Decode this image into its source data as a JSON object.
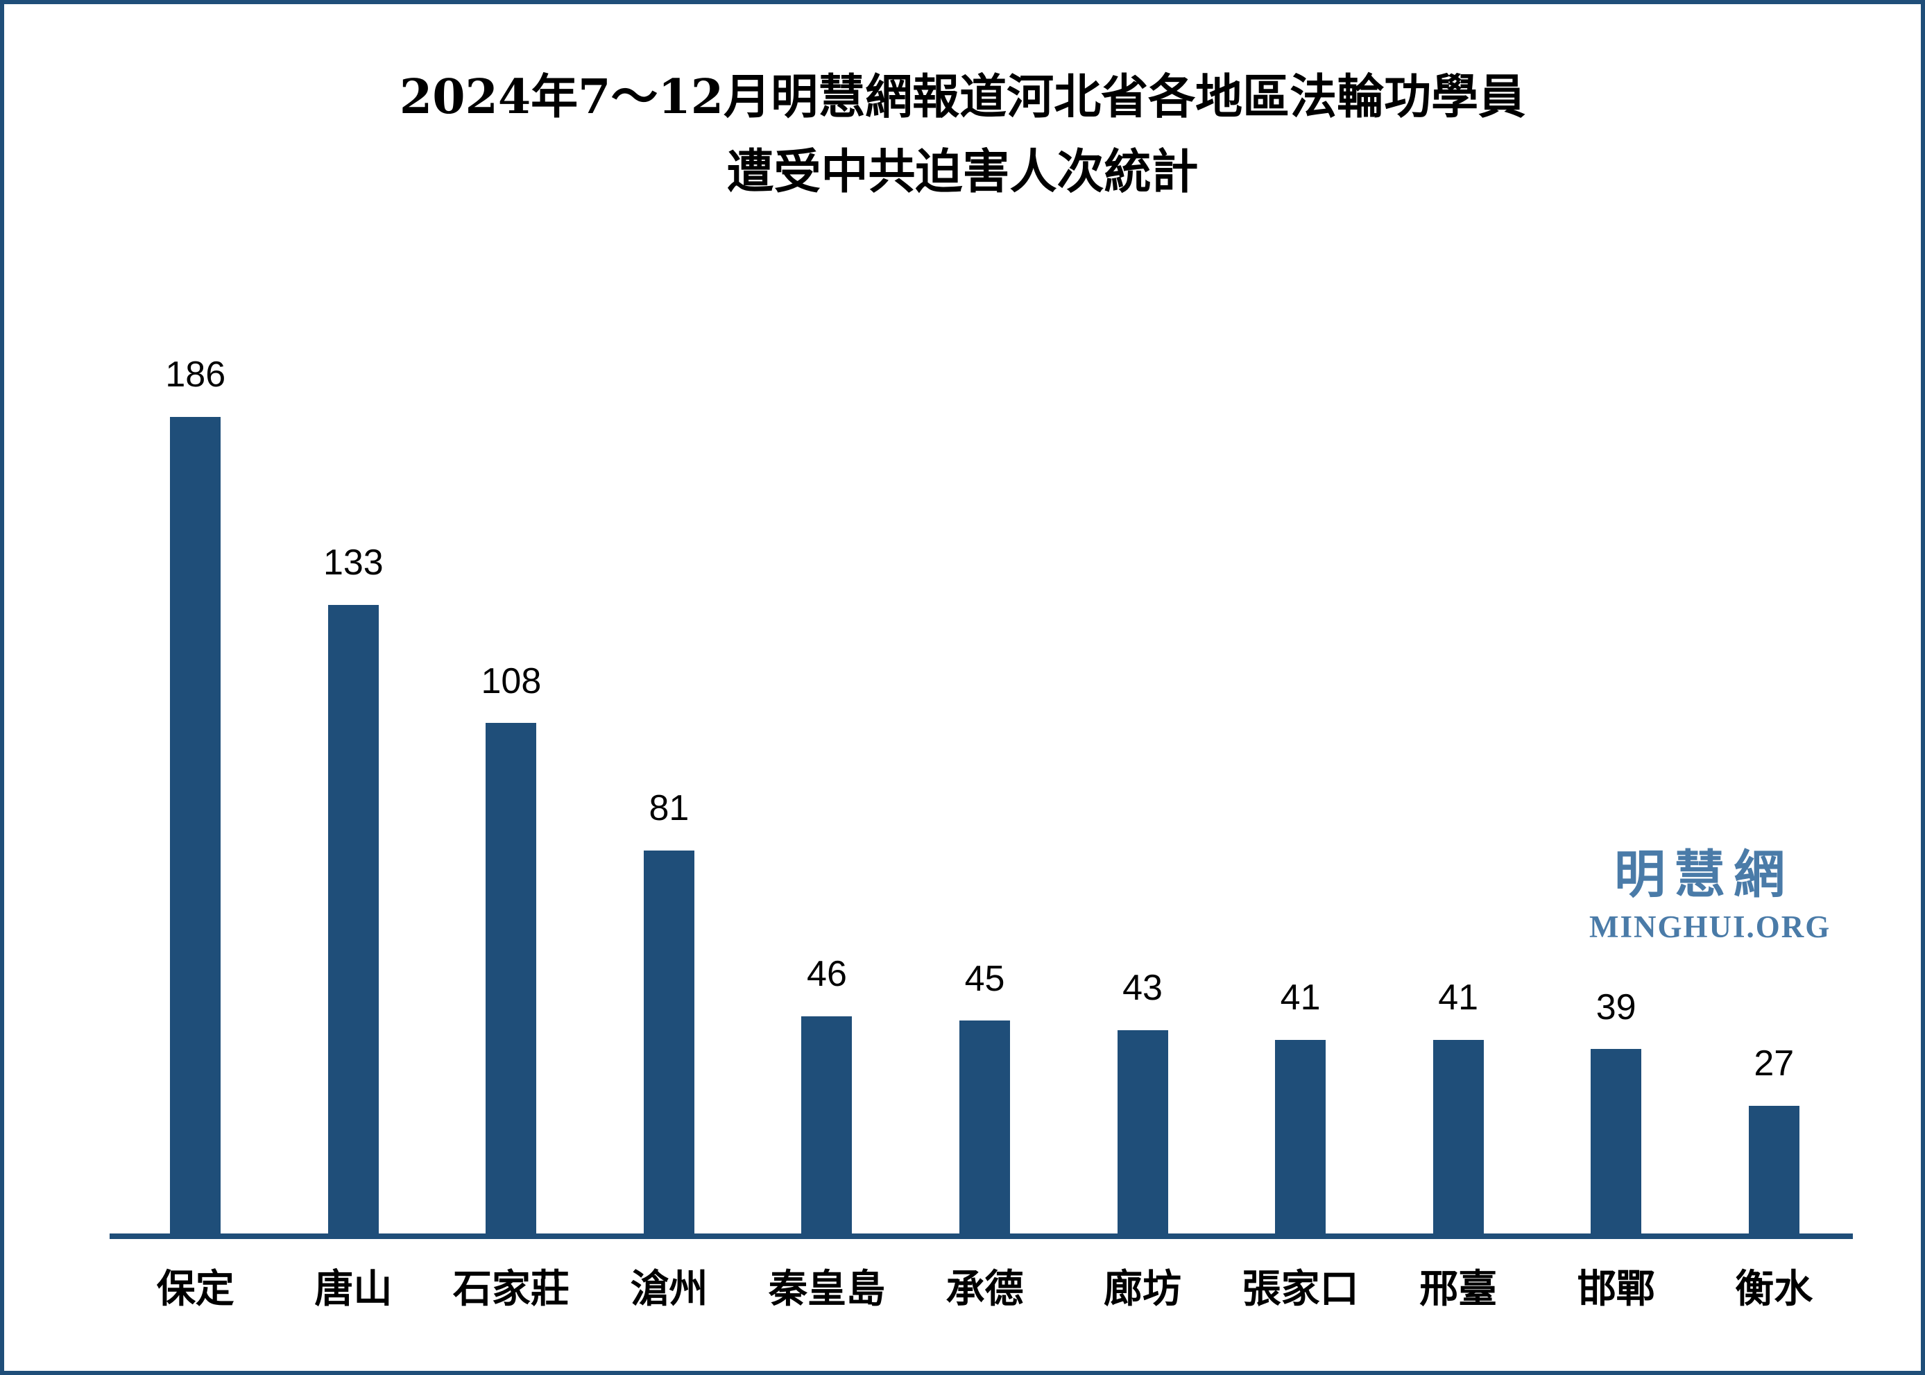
{
  "frame": {
    "border_color": "#1F4E79",
    "background_color": "#FFFFFF"
  },
  "title": {
    "line1": "2024年7～12月明慧網報道河北省各地區法輪功學員",
    "line2": "遭受中共迫害人次統計"
  },
  "watermark": {
    "chinese": "明慧網",
    "latin": "MINGHUI.ORG",
    "color": "#4A7BA8"
  },
  "chart_data": {
    "type": "bar",
    "title": "2024年7～12月明慧網報道河北省各地區法輪功學員遭受中共迫害人次統計",
    "categories": [
      "保定",
      "唐山",
      "石家莊",
      "滄州",
      "秦皇島",
      "承德",
      "廊坊",
      "張家口",
      "邢臺",
      "邯鄲",
      "衡水"
    ],
    "values": [
      186,
      133,
      108,
      81,
      46,
      45,
      43,
      41,
      41,
      39,
      27
    ],
    "xlabel": "",
    "ylabel": "",
    "ylim": [
      0,
      186
    ],
    "bar_color": "#1F4E79",
    "axis_color": "#1F4E79",
    "text_color": "#000000",
    "grid": false,
    "legend": false,
    "data_labels": true,
    "data_label_position": "above-bar"
  }
}
